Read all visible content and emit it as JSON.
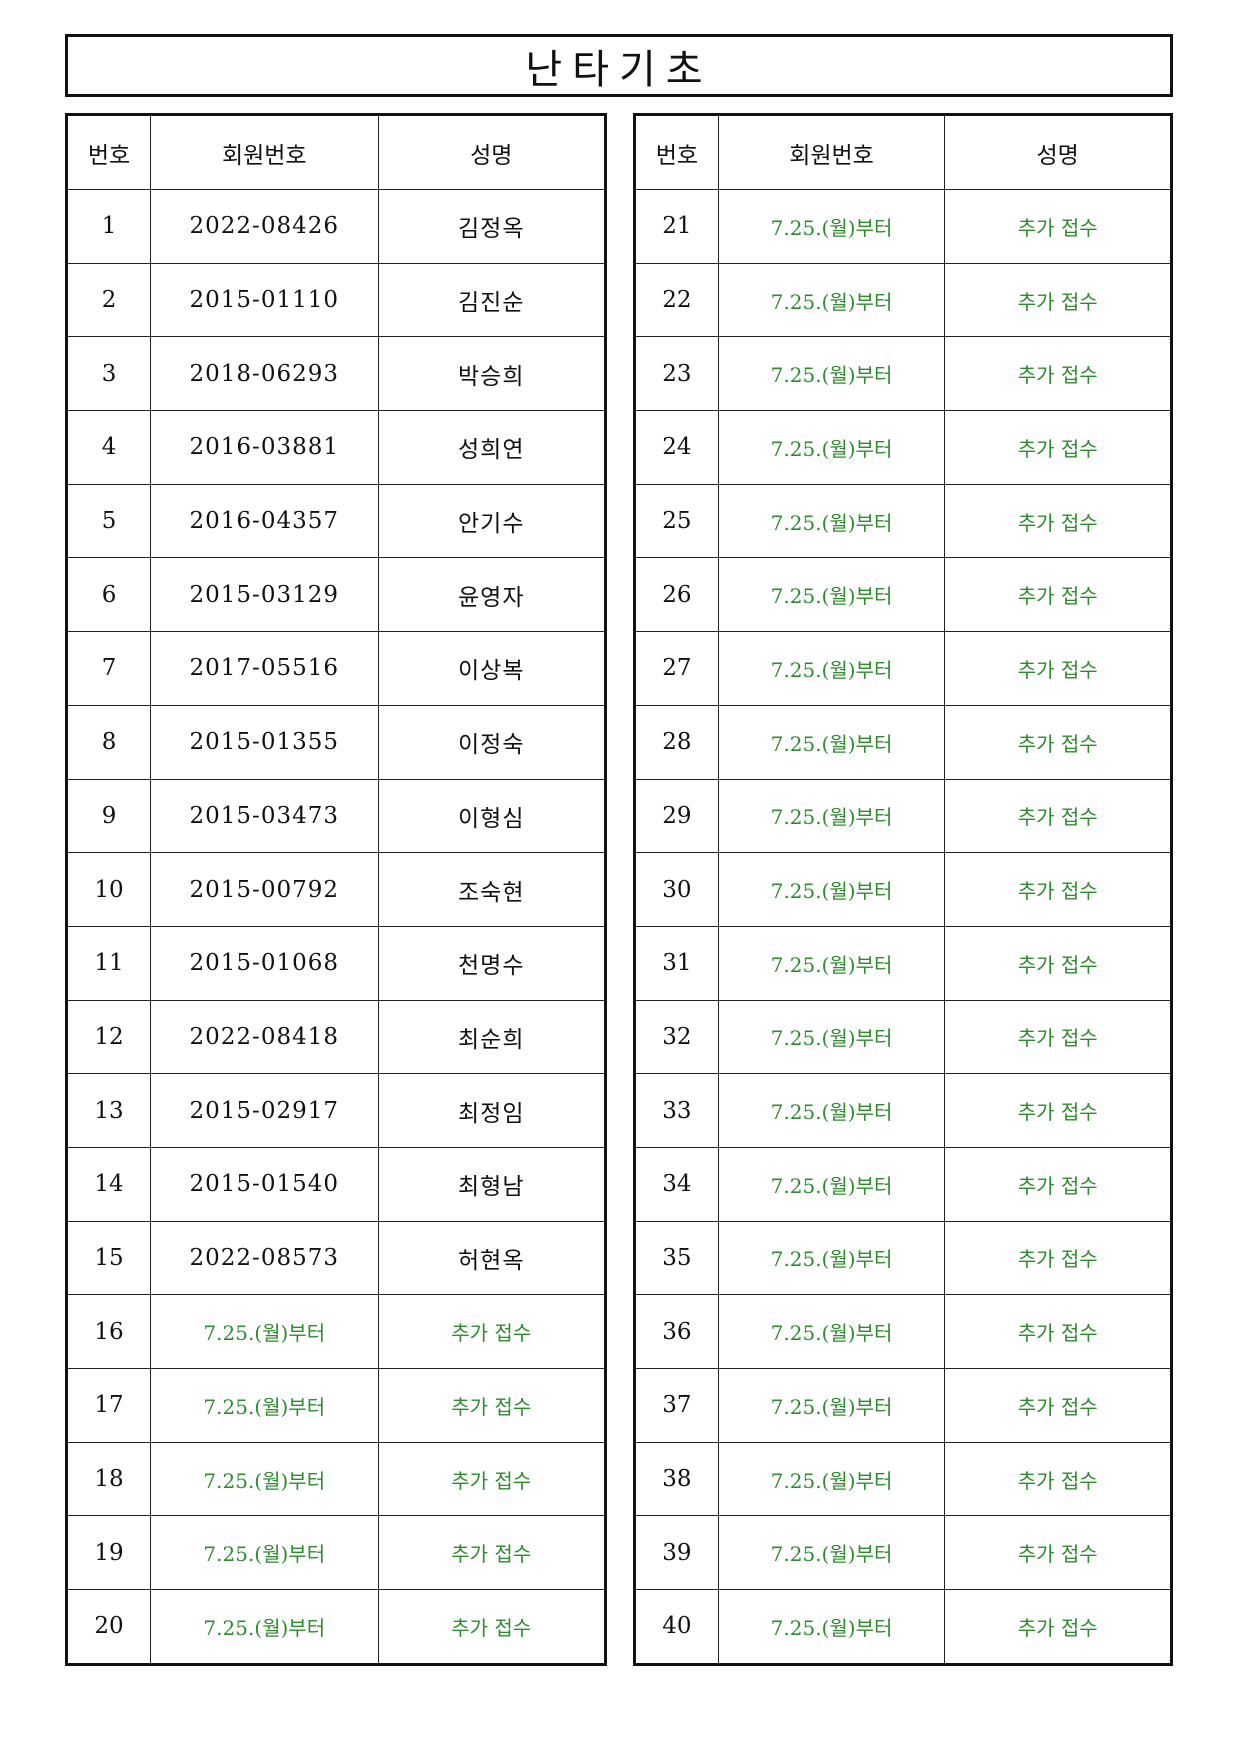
{
  "title": "난타기초",
  "headers": [
    "번호",
    "회원번호",
    "성명"
  ],
  "pending_color": "#2e8b2e",
  "left_rows": [
    {
      "no": "1",
      "id": "2022-08426",
      "name": "김정옥"
    },
    {
      "no": "2",
      "id": "2015-01110",
      "name": "김진순"
    },
    {
      "no": "3",
      "id": "2018-06293",
      "name": "박승희"
    },
    {
      "no": "4",
      "id": "2016-03881",
      "name": "성희연"
    },
    {
      "no": "5",
      "id": "2016-04357",
      "name": "안기수"
    },
    {
      "no": "6",
      "id": "2015-03129",
      "name": "윤영자"
    },
    {
      "no": "7",
      "id": "2017-05516",
      "name": "이상복"
    },
    {
      "no": "8",
      "id": "2015-01355",
      "name": "이정숙"
    },
    {
      "no": "9",
      "id": "2015-03473",
      "name": "이형심"
    },
    {
      "no": "10",
      "id": "2015-00792",
      "name": "조숙현"
    },
    {
      "no": "11",
      "id": "2015-01068",
      "name": "천명수"
    },
    {
      "no": "12",
      "id": "2022-08418",
      "name": "최순희"
    },
    {
      "no": "13",
      "id": "2015-02917",
      "name": "최정임"
    },
    {
      "no": "14",
      "id": "2015-01540",
      "name": "최형남"
    },
    {
      "no": "15",
      "id": "2022-08573",
      "name": "허현옥"
    },
    {
      "no": "16",
      "id": "7.25.(월)부터",
      "name": "추가 접수",
      "pending": true
    },
    {
      "no": "17",
      "id": "7.25.(월)부터",
      "name": "추가 접수",
      "pending": true
    },
    {
      "no": "18",
      "id": "7.25.(월)부터",
      "name": "추가 접수",
      "pending": true
    },
    {
      "no": "19",
      "id": "7.25.(월)부터",
      "name": "추가 접수",
      "pending": true
    },
    {
      "no": "20",
      "id": "7.25.(월)부터",
      "name": "추가 접수",
      "pending": true
    }
  ],
  "right_rows": [
    {
      "no": "21",
      "id": "7.25.(월)부터",
      "name": "추가 접수",
      "pending": true
    },
    {
      "no": "22",
      "id": "7.25.(월)부터",
      "name": "추가 접수",
      "pending": true
    },
    {
      "no": "23",
      "id": "7.25.(월)부터",
      "name": "추가 접수",
      "pending": true
    },
    {
      "no": "24",
      "id": "7.25.(월)부터",
      "name": "추가 접수",
      "pending": true
    },
    {
      "no": "25",
      "id": "7.25.(월)부터",
      "name": "추가 접수",
      "pending": true
    },
    {
      "no": "26",
      "id": "7.25.(월)부터",
      "name": "추가 접수",
      "pending": true
    },
    {
      "no": "27",
      "id": "7.25.(월)부터",
      "name": "추가 접수",
      "pending": true
    },
    {
      "no": "28",
      "id": "7.25.(월)부터",
      "name": "추가 접수",
      "pending": true
    },
    {
      "no": "29",
      "id": "7.25.(월)부터",
      "name": "추가 접수",
      "pending": true
    },
    {
      "no": "30",
      "id": "7.25.(월)부터",
      "name": "추가 접수",
      "pending": true
    },
    {
      "no": "31",
      "id": "7.25.(월)부터",
      "name": "추가 접수",
      "pending": true
    },
    {
      "no": "32",
      "id": "7.25.(월)부터",
      "name": "추가 접수",
      "pending": true
    },
    {
      "no": "33",
      "id": "7.25.(월)부터",
      "name": "추가 접수",
      "pending": true
    },
    {
      "no": "34",
      "id": "7.25.(월)부터",
      "name": "추가 접수",
      "pending": true
    },
    {
      "no": "35",
      "id": "7.25.(월)부터",
      "name": "추가 접수",
      "pending": true
    },
    {
      "no": "36",
      "id": "7.25.(월)부터",
      "name": "추가 접수",
      "pending": true
    },
    {
      "no": "37",
      "id": "7.25.(월)부터",
      "name": "추가 접수",
      "pending": true
    },
    {
      "no": "38",
      "id": "7.25.(월)부터",
      "name": "추가 접수",
      "pending": true
    },
    {
      "no": "39",
      "id": "7.25.(월)부터",
      "name": "추가 접수",
      "pending": true
    },
    {
      "no": "40",
      "id": "7.25.(월)부터",
      "name": "추가 접수",
      "pending": true
    }
  ]
}
